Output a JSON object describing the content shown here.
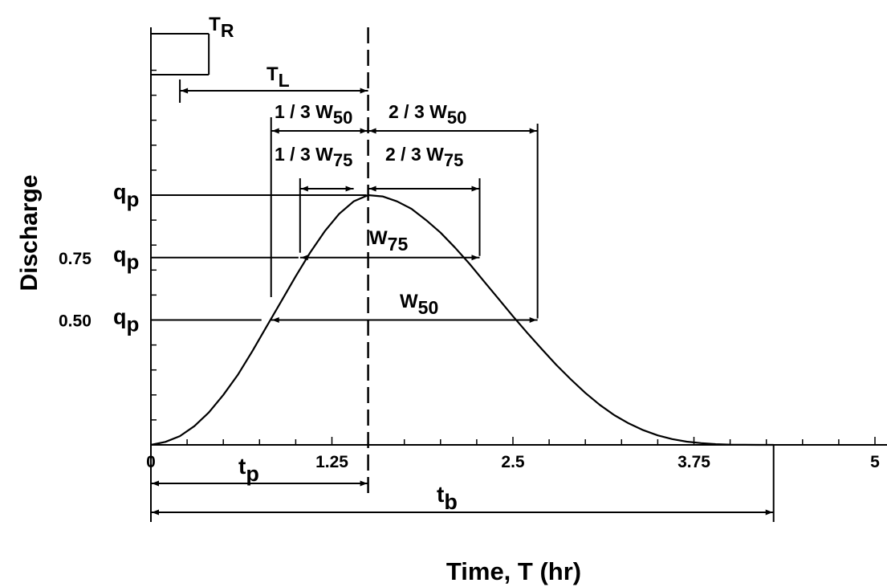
{
  "chart_data": {
    "type": "line",
    "xlabel": "Time, T (hr)",
    "ylabel": "Discharge",
    "xlim": [
      0,
      5
    ],
    "ylim": [
      0,
      1.0
    ],
    "xticks": [
      {
        "value": 0,
        "label": "0"
      },
      {
        "value": 1.25,
        "label": "1.25"
      },
      {
        "value": 2.5,
        "label": "2.5"
      },
      {
        "value": 3.75,
        "label": "3.75"
      },
      {
        "value": 5,
        "label": "5"
      }
    ],
    "y_levels": [
      {
        "key": "qp",
        "value": 1.0,
        "coef": "",
        "symbol": "q",
        "sub": "p"
      },
      {
        "key": "q75",
        "value": 0.75,
        "coef": "0.75",
        "symbol": "q",
        "sub": "p"
      },
      {
        "key": "q50",
        "value": 0.5,
        "coef": "0.50",
        "symbol": "q",
        "sub": "p"
      }
    ],
    "series": [
      {
        "x": [
          0,
          0.1,
          0.2,
          0.3,
          0.4,
          0.5,
          0.6,
          0.7,
          0.8,
          0.9,
          1.0,
          1.1,
          1.2,
          1.3,
          1.4,
          1.5,
          1.6,
          1.7,
          1.8,
          1.9,
          2.0,
          2.1,
          2.2,
          2.3,
          2.4,
          2.5,
          2.6,
          2.7,
          2.8,
          2.9,
          3.0,
          3.1,
          3.2,
          3.3,
          3.4,
          3.5,
          3.6,
          3.7,
          3.8,
          3.9,
          4.0,
          4.1,
          4.2,
          4.3
        ],
        "y": [
          0,
          0.012,
          0.035,
          0.075,
          0.13,
          0.2,
          0.28,
          0.375,
          0.475,
          0.575,
          0.675,
          0.77,
          0.855,
          0.925,
          0.975,
          1.0,
          0.995,
          0.975,
          0.945,
          0.9,
          0.85,
          0.79,
          0.725,
          0.655,
          0.585,
          0.515,
          0.448,
          0.383,
          0.32,
          0.262,
          0.208,
          0.16,
          0.119,
          0.086,
          0.059,
          0.038,
          0.023,
          0.013,
          0.007,
          0.003,
          0.001,
          0.0003,
          0.0001,
          0
        ]
      }
    ],
    "peak_time": 1.5,
    "w75_range": [
      1.03,
      2.27
    ],
    "w50_range": [
      0.83,
      2.67
    ],
    "tr_range": [
      0,
      0.4
    ],
    "tl_start": 0.2,
    "tb_end": 4.3,
    "annotations": {
      "tr": {
        "main": "T",
        "sub": "R"
      },
      "tl": {
        "main": "T",
        "sub": "L"
      },
      "third_w50": {
        "main": "1 / 3  W",
        "sub": "50"
      },
      "two_third_w50": {
        "main": "2 / 3  W",
        "sub": "50"
      },
      "third_w75": {
        "main": "1 / 3  W",
        "sub": "75"
      },
      "two_third_w75": {
        "main": "2 / 3  W",
        "sub": "75"
      },
      "w75": {
        "main": "W",
        "sub": "75"
      },
      "w50": {
        "main": "W",
        "sub": "50"
      },
      "tp": {
        "main": "t",
        "sub": "p"
      },
      "tb": {
        "main": "t",
        "sub": "b"
      }
    }
  }
}
